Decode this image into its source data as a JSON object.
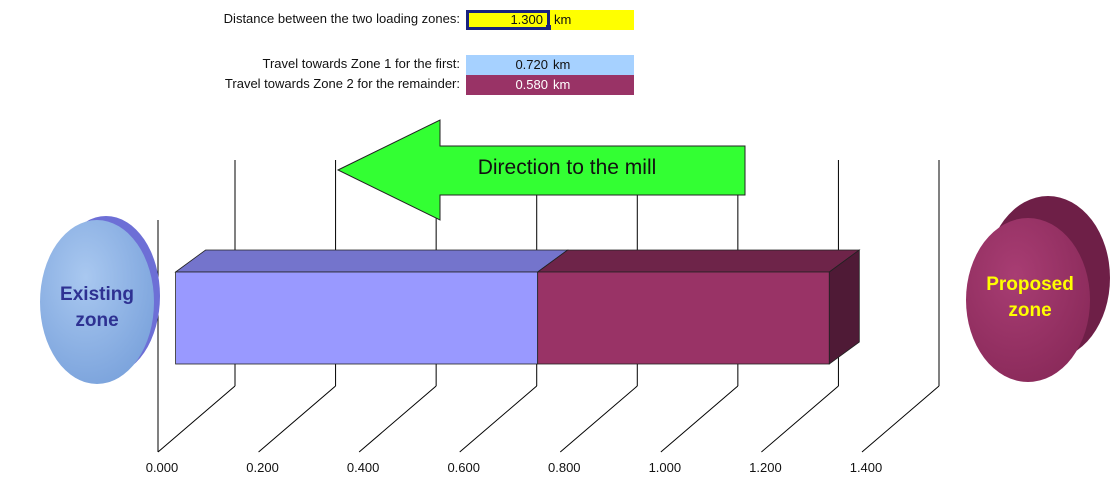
{
  "inputs": {
    "distance_label": "Distance between the two loading zones:",
    "distance_value": "1.300",
    "distance_unit": "km",
    "zone1_label": "Travel towards Zone 1 for the first:",
    "zone1_value": "0.720",
    "zone1_unit": "km",
    "zone2_label": "Travel towards Zone 2 for the remainder:",
    "zone2_value": "0.580",
    "zone2_unit": "km"
  },
  "arrow_label": "Direction to the mill",
  "zones": {
    "existing": "Existing\nzone",
    "proposed": "Proposed\nzone"
  },
  "colors": {
    "segment1": "#9999ff",
    "segment2": "#993366",
    "input_highlight": "#ffff00",
    "zone1_cell": "#a6d1ff",
    "arrow": "#33ff33",
    "existing_zone_text": "#2e3192",
    "proposed_zone_text": "#ffff00"
  },
  "chart_data": {
    "type": "bar",
    "orientation": "horizontal",
    "stacked": true,
    "three_d": true,
    "categories": [
      ""
    ],
    "series": [
      {
        "values": [
          0.72
        ]
      },
      {
        "values": [
          0.58
        ]
      }
    ],
    "xlim": [
      0,
      1.4
    ],
    "x_ticks": [
      "0.000",
      "0.200",
      "0.400",
      "0.600",
      "0.800",
      "1.000",
      "1.200",
      "1.400"
    ],
    "grid": true
  }
}
